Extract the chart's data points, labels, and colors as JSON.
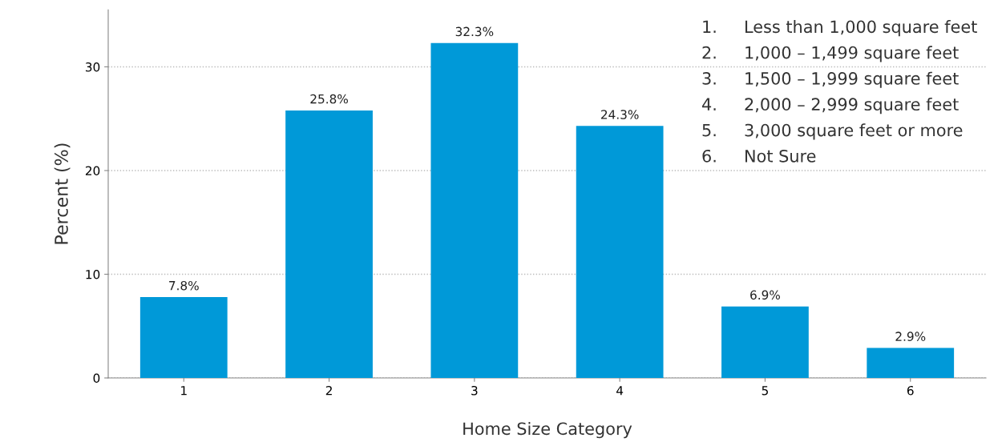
{
  "chart_data": {
    "type": "bar",
    "xlabel": "Home Size Category",
    "ylabel": "Percent (%)",
    "categories": [
      "1",
      "2",
      "3",
      "4",
      "5",
      "6"
    ],
    "values": [
      7.8,
      25.8,
      32.3,
      24.3,
      6.9,
      2.9
    ],
    "value_labels": [
      "7.8%",
      "25.8%",
      "32.3%",
      "24.3%",
      "6.9%",
      "2.9%"
    ],
    "color": "#0099d8",
    "ylim": [
      0,
      35.5
    ],
    "yticks": [
      0,
      10,
      20,
      30
    ],
    "grid": "y",
    "legend": false,
    "annotations": [
      "1.     Less than 1,000 square feet",
      "2.     1,000 – 1,499 square feet",
      "3.     1,500 – 1,999 square feet",
      "4.     2,000 – 2,999 square feet",
      "5.     3,000 square feet or more",
      "6.     Not Sure"
    ]
  }
}
